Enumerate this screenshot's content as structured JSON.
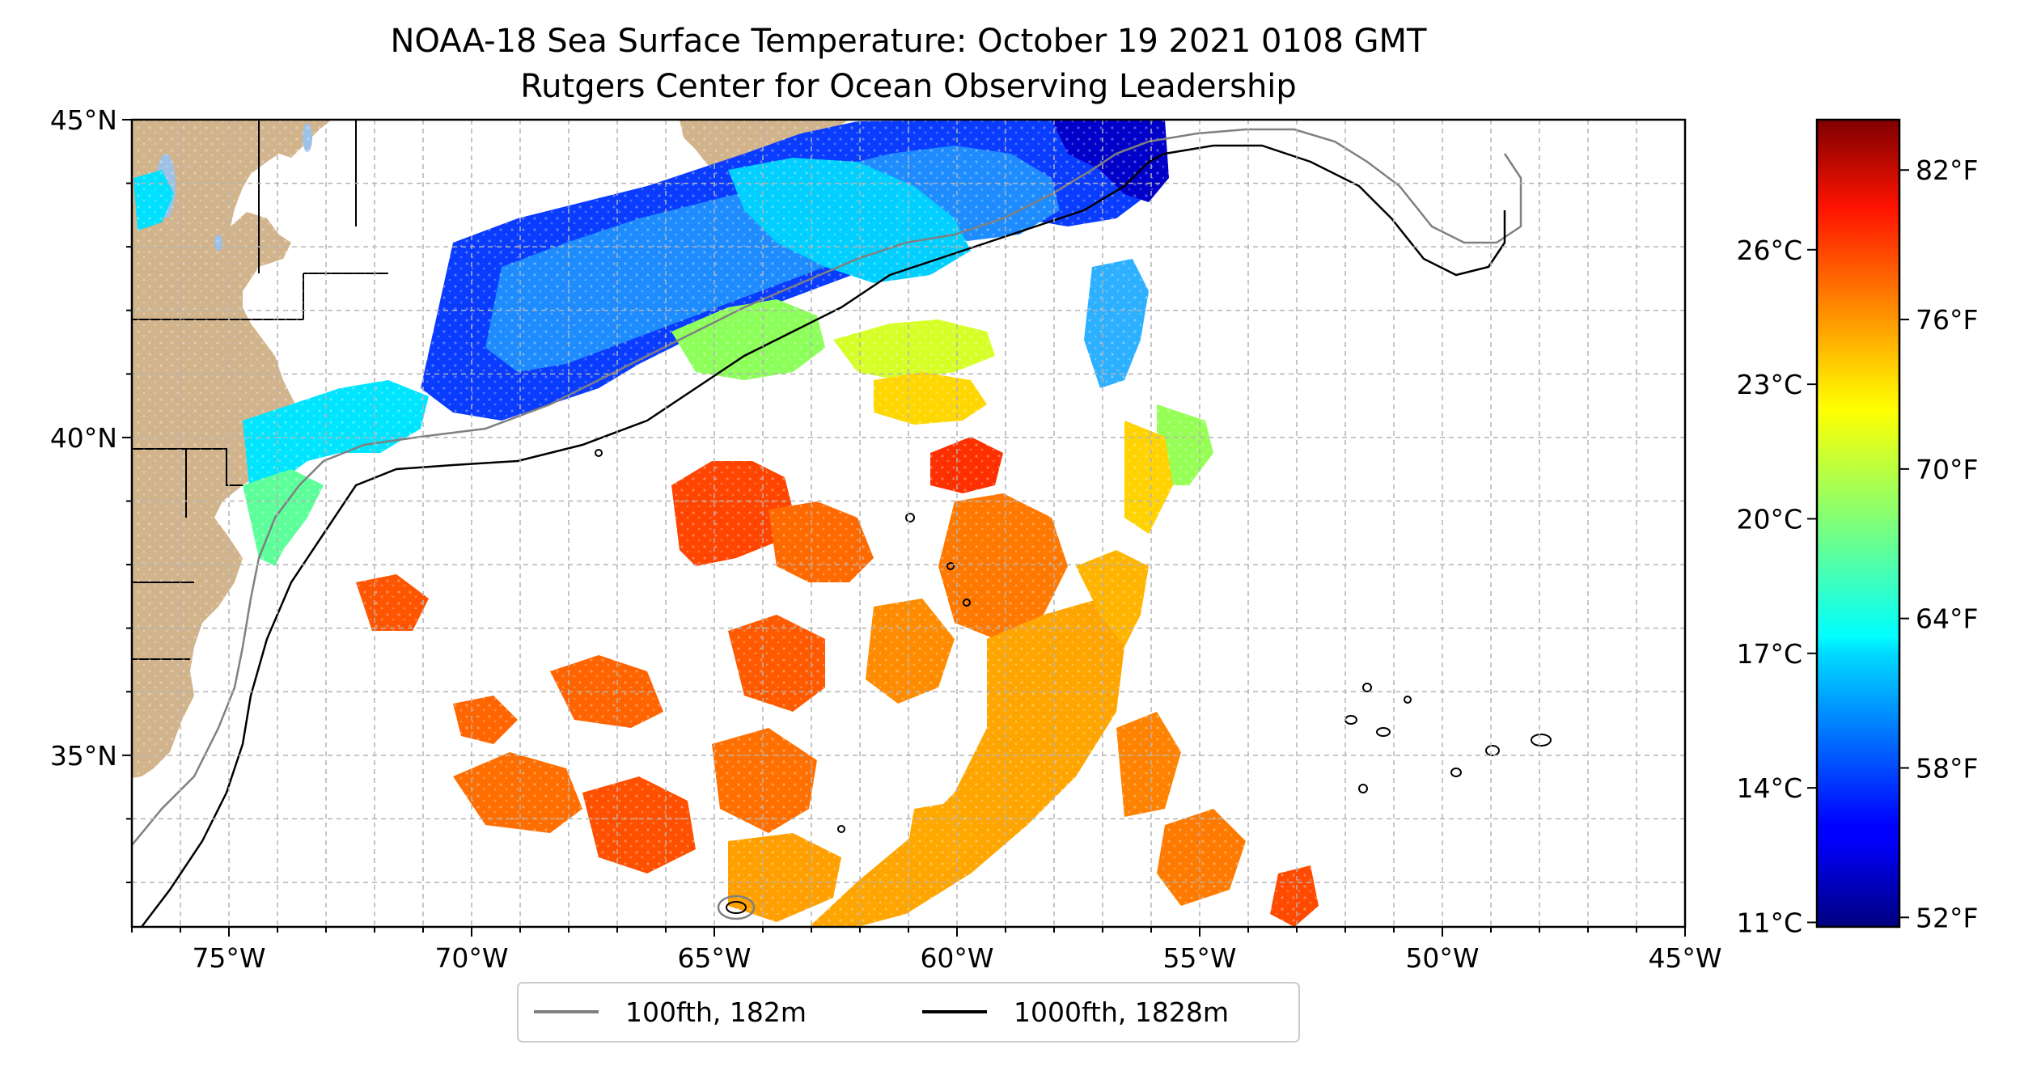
{
  "title": "NOAA-18 Sea Surface Temperature: October 19 2021 0108 GMT",
  "subtitle": "Rutgers Center for Ocean Observing Leadership",
  "map": {
    "lon_range": [
      -77,
      -45
    ],
    "lat_range": [
      32.3,
      45
    ],
    "lon_ticks": [
      {
        "lon": -75,
        "label": "75°W"
      },
      {
        "lon": -70,
        "label": "70°W"
      },
      {
        "lon": -65,
        "label": "65°W"
      },
      {
        "lon": -60,
        "label": "60°W"
      },
      {
        "lon": -55,
        "label": "55°W"
      },
      {
        "lon": -50,
        "label": "50°W"
      },
      {
        "lon": -45,
        "label": "45°W"
      }
    ],
    "lat_ticks": [
      {
        "lat": 45,
        "label": "45°N"
      },
      {
        "lat": 40,
        "label": "40°N"
      },
      {
        "lat": 35,
        "label": "35°N"
      }
    ],
    "grid": true,
    "land_color": "#d2b48c",
    "lake_color": "#9ec1e6",
    "clouds_color": "#ffffff"
  },
  "colorbar": {
    "colormap": "jet",
    "celsius_labels": [
      "11°C",
      "14°C",
      "17°C",
      "20°C",
      "23°C",
      "26°C"
    ],
    "celsius_values": [
      11,
      14,
      17,
      20,
      23,
      26
    ],
    "fahrenheit_labels": [
      "52°F",
      "58°F",
      "64°F",
      "70°F",
      "76°F",
      "82°F"
    ],
    "fahrenheit_values": [
      52,
      58,
      64,
      70,
      76,
      82
    ],
    "range_c": [
      10.9,
      28.9
    ]
  },
  "legend": {
    "items": [
      {
        "label": "100fth, 182m",
        "color": "#808080"
      },
      {
        "label": "1000fth, 1828m",
        "color": "#000000"
      }
    ]
  }
}
